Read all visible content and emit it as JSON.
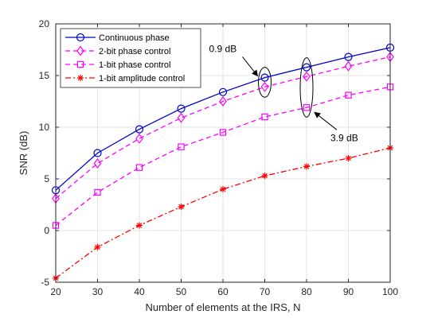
{
  "chart_data": {
    "type": "line",
    "xlabel": "Number of elements at the IRS, N",
    "ylabel": "SNR (dB)",
    "xlim": [
      20,
      100
    ],
    "ylim": [
      -5,
      20
    ],
    "x_ticks": [
      20,
      30,
      40,
      50,
      60,
      70,
      80,
      90,
      100
    ],
    "y_ticks": [
      -5,
      0,
      5,
      10,
      15,
      20
    ],
    "grid": true,
    "legend_position": "top-left",
    "x": [
      20,
      30,
      40,
      50,
      60,
      70,
      80,
      90,
      100
    ],
    "series": [
      {
        "name": "Continuous phase",
        "color": "#0000cc",
        "line": "solid",
        "marker": "circle",
        "values": [
          3.9,
          7.5,
          9.8,
          11.8,
          13.4,
          14.8,
          15.8,
          16.8,
          17.7
        ]
      },
      {
        "name": "2-bit phase control",
        "color": "#ff00ff",
        "line": "dashed",
        "marker": "diamond",
        "values": [
          3.1,
          6.5,
          8.9,
          10.9,
          12.5,
          13.9,
          14.9,
          15.9,
          16.8
        ]
      },
      {
        "name": "1-bit phase control",
        "color": "#ff00ff",
        "line": "dashed",
        "marker": "square",
        "values": [
          0.5,
          3.7,
          6.1,
          8.1,
          9.5,
          11.0,
          11.9,
          13.1,
          13.9
        ]
      },
      {
        "name": "1-bit amplitude control",
        "color": "#ff0000",
        "line": "dashdot",
        "marker": "star",
        "values": [
          -4.6,
          -1.6,
          0.5,
          2.3,
          4.0,
          5.3,
          6.2,
          7.0,
          8.0
        ]
      }
    ],
    "annotations": [
      {
        "text": "0.9 dB",
        "target_x": 70,
        "target_y_range": [
          13.9,
          14.8
        ]
      },
      {
        "text": "3.9 dB",
        "target_x": 80,
        "target_y_range": [
          11.9,
          15.8
        ]
      }
    ]
  }
}
